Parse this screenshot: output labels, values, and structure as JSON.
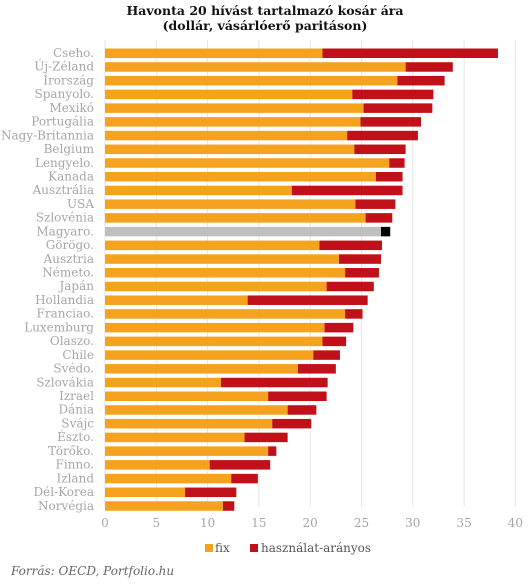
{
  "chart_data": {
    "type": "bar",
    "orientation": "horizontal",
    "stacked": true,
    "title": "Havonta 20 hívást tartalmazó kosár ára",
    "subtitle": "(dollár, vásárlóerő paritáson)",
    "categories": [
      "Cseho.",
      "Új-Zéland",
      "Írország",
      "Spanyolo.",
      "Mexikó",
      "Portugália",
      "Nagy-Britannia",
      "Belgium",
      "Lengyelo.",
      "Kanada",
      "Ausztrália",
      "USA",
      "Szlovénia",
      "Magyaro.",
      "Görögo.",
      "Ausztria",
      "Németo.",
      "Japán",
      "Hollandia",
      "Franciao.",
      "Luxemburg",
      "Olaszo.",
      "Chile",
      "Svédo.",
      "Szlovákia",
      "Izrael",
      "Dánia",
      "Svájc",
      "Észto.",
      "Törőko.",
      "Finno.",
      "Izland",
      "Dél-Korea",
      "Norvégia"
    ],
    "series": [
      {
        "name": "fix",
        "color": "#f5a21f",
        "highlight_color": "#bfbfbf",
        "values": [
          21.2,
          29.3,
          28.5,
          24.1,
          25.2,
          24.9,
          23.6,
          24.3,
          27.7,
          26.4,
          18.2,
          24.4,
          25.4,
          26.9,
          20.9,
          22.8,
          23.4,
          21.6,
          13.9,
          23.4,
          21.4,
          21.2,
          20.3,
          18.8,
          11.3,
          15.9,
          17.8,
          16.3,
          13.6,
          15.9,
          10.2,
          12.3,
          7.8,
          11.5
        ]
      },
      {
        "name": "használat-arányos",
        "color": "#c0101a",
        "highlight_color": "#000000",
        "values": [
          17.1,
          4.6,
          4.6,
          7.9,
          6.7,
          5.9,
          6.9,
          5.0,
          1.5,
          2.6,
          10.8,
          3.9,
          2.6,
          0.9,
          6.1,
          4.1,
          3.3,
          4.6,
          11.7,
          1.7,
          2.8,
          2.3,
          2.6,
          3.7,
          10.4,
          5.7,
          2.8,
          3.8,
          4.2,
          0.8,
          5.9,
          2.6,
          5.0,
          1.1
        ]
      }
    ],
    "highlight_category": "Magyaro.",
    "xlim": [
      0,
      40
    ],
    "xticks": [
      0,
      5,
      10,
      15,
      20,
      25,
      30,
      35,
      40
    ],
    "grid": true,
    "legend_position": "bottom"
  },
  "source": "Forrás: OECD, Portfolio.hu"
}
